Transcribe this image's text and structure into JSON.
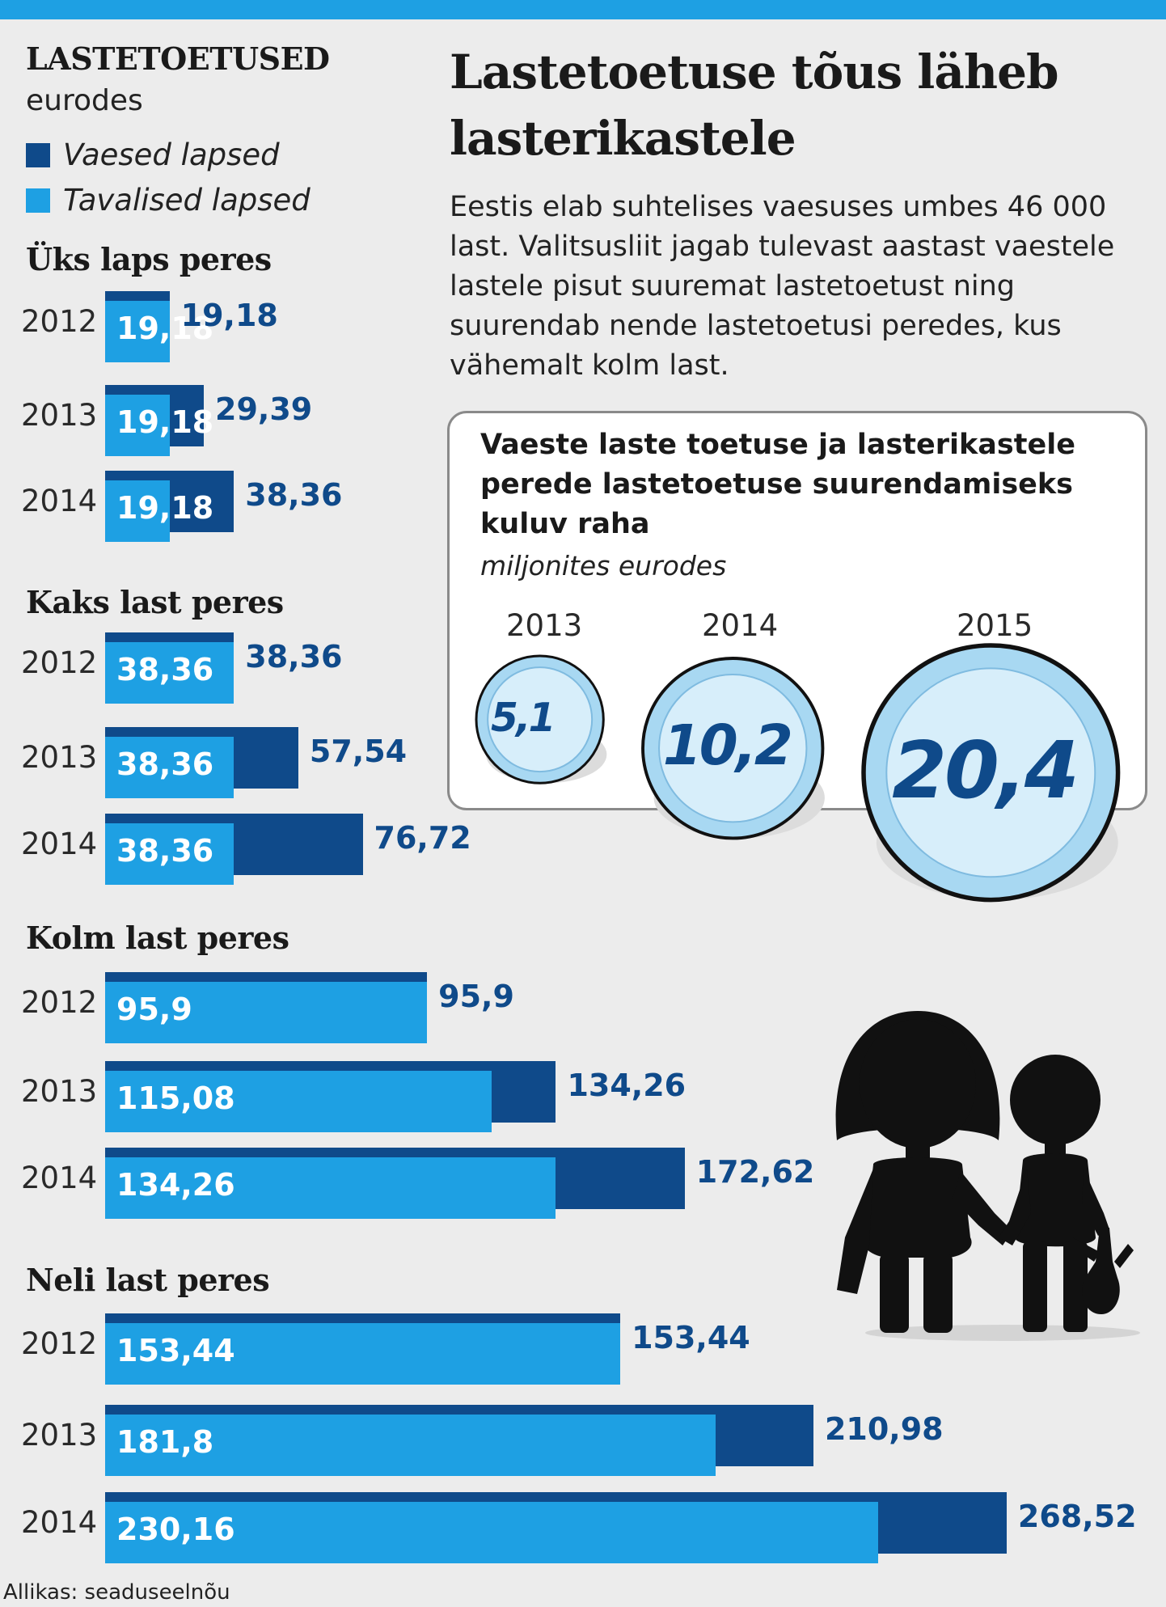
{
  "header": {
    "left_title": "LASTETOETUSED",
    "left_subtitle": "eurodes",
    "legend": [
      {
        "label": "Vaesed lapsed",
        "color": "#0f4a8a"
      },
      {
        "label": "Tavalised lapsed",
        "color": "#1ea0e3"
      }
    ],
    "main_title": "Lastetoetuse tõus läheb lasterikastele",
    "description": "Eestis elab suhtelises vaesuses umbes 46 000 last. Valitsusliit jagab tulevast aastast vaestele lastele pisut suuremat lastetoetust ning suurendab nende lastetoetusi peredes, kus vähemalt kolm last."
  },
  "box": {
    "title": "Vaeste laste toetuse ja lasterikastele perede lastetoetuse suurendamiseks kuluv raha",
    "subtitle": "miljonites eurodes"
  },
  "chart_data": [
    {
      "type": "bar",
      "orientation": "horizontal",
      "title": "LASTETOETUSED",
      "subtitle": "eurodes",
      "series_names": [
        "Vaesed lapsed",
        "Tavalised lapsed"
      ],
      "groups": [
        {
          "title": "Üks laps peres",
          "rows": [
            {
              "year": "2012",
              "vaesed": 19.18,
              "vaesed_label": "19,18",
              "tavalised": 19.18,
              "tavalised_label": "19,18"
            },
            {
              "year": "2013",
              "vaesed": 29.39,
              "vaesed_label": "29,39",
              "tavalised": 19.18,
              "tavalised_label": "19,18"
            },
            {
              "year": "2014",
              "vaesed": 38.36,
              "vaesed_label": "38,36",
              "tavalised": 19.18,
              "tavalised_label": "19,18"
            }
          ]
        },
        {
          "title": "Kaks last peres",
          "rows": [
            {
              "year": "2012",
              "vaesed": 38.36,
              "vaesed_label": "38,36",
              "tavalised": 38.36,
              "tavalised_label": "38,36"
            },
            {
              "year": "2013",
              "vaesed": 57.54,
              "vaesed_label": "57,54",
              "tavalised": 38.36,
              "tavalised_label": "38,36"
            },
            {
              "year": "2014",
              "vaesed": 76.72,
              "vaesed_label": "76,72",
              "tavalised": 38.36,
              "tavalised_label": "38,36"
            }
          ]
        },
        {
          "title": "Kolm last peres",
          "rows": [
            {
              "year": "2012",
              "vaesed": 95.9,
              "vaesed_label": "95,9",
              "tavalised": 95.9,
              "tavalised_label": "95,9"
            },
            {
              "year": "2013",
              "vaesed": 134.26,
              "vaesed_label": "134,26",
              "tavalised": 115.08,
              "tavalised_label": "115,08"
            },
            {
              "year": "2014",
              "vaesed": 172.62,
              "vaesed_label": "172,62",
              "tavalised": 134.26,
              "tavalised_label": "134,26"
            }
          ]
        },
        {
          "title": "Neli last peres",
          "rows": [
            {
              "year": "2012",
              "vaesed": 153.44,
              "vaesed_label": "153,44",
              "tavalised": 153.44,
              "tavalised_label": "153,44"
            },
            {
              "year": "2013",
              "vaesed": 210.98,
              "vaesed_label": "210,98",
              "tavalised": 181.8,
              "tavalised_label": "181,8"
            },
            {
              "year": "2014",
              "vaesed": 268.52,
              "vaesed_label": "268,52",
              "tavalised": 230.16,
              "tavalised_label": "230,16"
            }
          ]
        }
      ]
    },
    {
      "type": "bar",
      "title": "Vaeste laste toetuse ja lasterikastele perede lastetoetuse suurendamiseks kuluv raha",
      "subtitle": "miljonites eurodes",
      "categories": [
        "2013",
        "2014",
        "2015"
      ],
      "values": [
        5.1,
        10.2,
        20.4
      ],
      "labels": [
        "5,1",
        "10,2",
        "20,4"
      ]
    }
  ],
  "source": "Allikas: seaduseelnõu"
}
